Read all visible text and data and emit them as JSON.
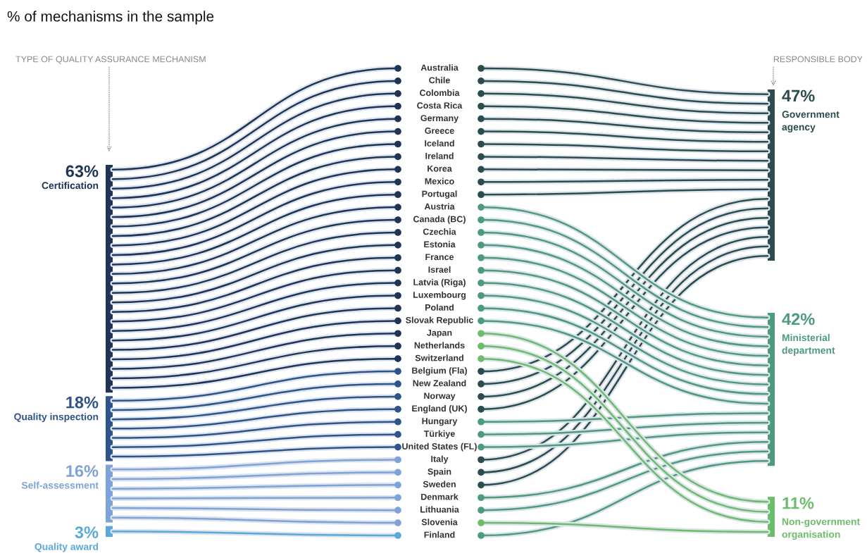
{
  "chart_data": {
    "type": "other",
    "title": "% of mechanisms in the sample",
    "categories": [
      "Certification",
      "Quality inspection",
      "Self-assessment",
      "Quality award",
      "Government agency",
      "Ministerial department",
      "Non-government organisation"
    ],
    "colors": [
      "#1f3556",
      "#2f5488",
      "#7ea3d6",
      "#5aa8dc",
      "#2b4d4d",
      "#4e9a7d",
      "#6cbd6a"
    ],
    "series": [
      {
        "axis": "y",
        "values": [
          63,
          18,
          16,
          3,
          null,
          null,
          null
        ],
        "value_labels": [
          "63%",
          "18%",
          "16%",
          "3%",
          null,
          null,
          null
        ]
      },
      {
        "axis": "y2",
        "values": [
          null,
          null,
          null,
          null,
          47,
          42,
          11
        ],
        "value_labels": [
          null,
          null,
          null,
          null,
          "47%",
          "42%",
          "11%"
        ]
      }
    ],
    "annotations": [
      "TYPE OF QUALITY ASSURANCE MECHANISM",
      "RESPONSIBLE BODY",
      {
        "text": "Australia",
        "x": "Certification",
        "y": "Government agency"
      },
      {
        "text": "Chile",
        "x": "Certification",
        "y": "Government agency"
      },
      {
        "text": "Colombia",
        "x": "Certification",
        "y": "Government agency"
      },
      {
        "text": "Costa Rica",
        "x": "Certification",
        "y": "Government agency"
      },
      {
        "text": "Germany",
        "x": "Certification",
        "y": "Government agency"
      },
      {
        "text": "Greece",
        "x": "Certification",
        "y": "Government agency"
      },
      {
        "text": "Iceland",
        "x": "Certification",
        "y": "Government agency"
      },
      {
        "text": "Ireland",
        "x": "Certification",
        "y": "Government agency"
      },
      {
        "text": "Korea",
        "x": "Certification",
        "y": "Government agency"
      },
      {
        "text": "Mexico",
        "x": "Certification",
        "y": "Government agency"
      },
      {
        "text": "Portugal",
        "x": "Certification",
        "y": "Government agency"
      },
      {
        "text": "Austria",
        "x": "Certification",
        "y": "Ministerial department"
      },
      {
        "text": "Canada (BC)",
        "x": "Certification",
        "y": "Ministerial department"
      },
      {
        "text": "Czechia",
        "x": "Certification",
        "y": "Ministerial department"
      },
      {
        "text": "Estonia",
        "x": "Certification",
        "y": "Ministerial department"
      },
      {
        "text": "France",
        "x": "Certification",
        "y": "Ministerial department"
      },
      {
        "text": "Israel",
        "x": "Certification",
        "y": "Ministerial department"
      },
      {
        "text": "Latvia (Riga)",
        "x": "Certification",
        "y": "Ministerial department"
      },
      {
        "text": "Luxembourg",
        "x": "Certification",
        "y": "Ministerial department"
      },
      {
        "text": "Poland",
        "x": "Certification",
        "y": "Ministerial department"
      },
      {
        "text": "Slovak Republic",
        "x": "Certification",
        "y": "Ministerial department"
      },
      {
        "text": "Japan",
        "x": "Certification",
        "y": "Non-government organisation"
      },
      {
        "text": "Netherlands",
        "x": "Certification",
        "y": "Non-government organisation"
      },
      {
        "text": "Switzerland",
        "x": "Certification",
        "y": "Non-government organisation"
      },
      {
        "text": "Belgium (Fla)",
        "x": "Quality inspection",
        "y": "Government agency"
      },
      {
        "text": "New Zealand",
        "x": "Quality inspection",
        "y": "Government agency"
      },
      {
        "text": "Norway",
        "x": "Quality inspection",
        "y": "Government agency"
      },
      {
        "text": "England (UK)",
        "x": "Quality inspection",
        "y": "Government agency"
      },
      {
        "text": "Hungary",
        "x": "Quality inspection",
        "y": "Ministerial department"
      },
      {
        "text": "Türkiye",
        "x": "Quality inspection",
        "y": "Ministerial department"
      },
      {
        "text": "United States (FL)",
        "x": "Quality inspection",
        "y": "Ministerial department"
      },
      {
        "text": "Italy",
        "x": "Self-assessment",
        "y": "Government agency"
      },
      {
        "text": "Spain",
        "x": "Self-assessment",
        "y": "Government agency"
      },
      {
        "text": "Sweden",
        "x": "Self-assessment",
        "y": "Government agency"
      },
      {
        "text": "Denmark",
        "x": "Self-assessment",
        "y": "Ministerial department"
      },
      {
        "text": "Lithuania",
        "x": "Self-assessment",
        "y": "Ministerial department"
      },
      {
        "text": "Slovenia",
        "x": "Self-assessment",
        "y": "Non-government organisation"
      },
      {
        "text": "Finland",
        "x": "Quality award",
        "y": "Ministerial department"
      }
    ]
  }
}
